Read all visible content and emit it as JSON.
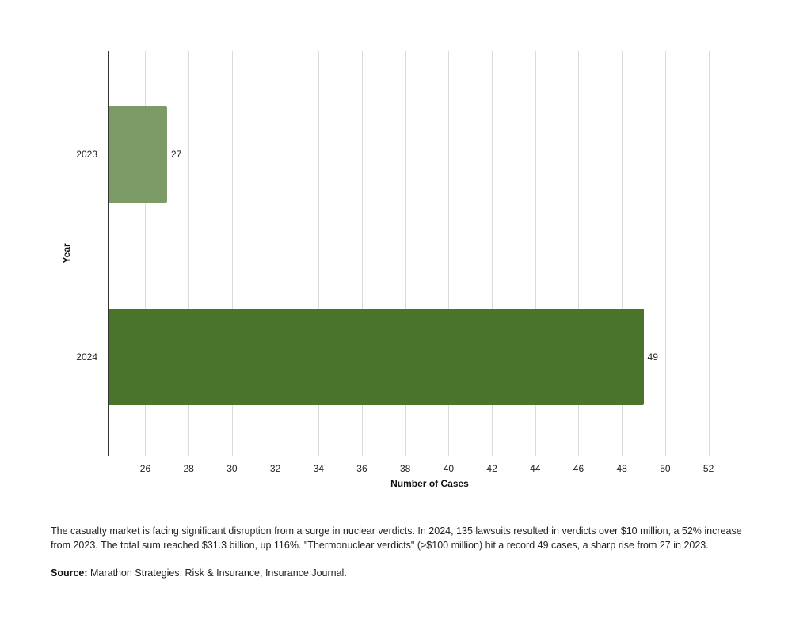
{
  "chart_data": {
    "type": "bar",
    "orientation": "horizontal",
    "title": "",
    "categories": [
      "2023",
      "2024"
    ],
    "values": [
      27,
      49
    ],
    "bar_colors": [
      "#7d9b67",
      "#4a742c"
    ],
    "data_labels": [
      "27",
      "49"
    ],
    "xlabel": "Number of Cases",
    "ylabel": "Year",
    "xlim": [
      24.3,
      53.7
    ],
    "x_ticks": [
      26,
      28,
      30,
      32,
      34,
      36,
      38,
      40,
      42,
      44,
      46,
      48,
      50,
      52
    ],
    "grid": "vertical",
    "legend": "none"
  },
  "caption": {
    "text": "The casualty market is facing significant disruption from a surge in nuclear verdicts. In 2024, 135 lawsuits resulted in verdicts over $10 million, a 52% increase from 2023. The total sum reached $31.3 billion, up 116%. \"Thermonuclear verdicts\" (>$100 million) hit a record 49 cases, a sharp rise from 27 in 2023."
  },
  "source": {
    "label": "Source:",
    "text": " Marathon Strategies, Risk & Insurance, Insurance Journal."
  }
}
